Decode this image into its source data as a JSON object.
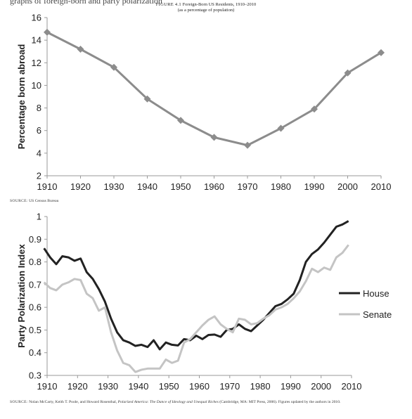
{
  "page": {
    "top_text": "graphs of foreign-born and party polarization",
    "figure_label": "FIGURE 4.1",
    "figure_title": "Foreign-Born US Residents, 1910–2010",
    "figure_subtitle": "(as a percentage of population)"
  },
  "source1": {
    "label": "SOURCE:",
    "text": "US Census Bureau"
  },
  "source2": {
    "label": "SOURCE:",
    "text_a": "Nolan McCarty, Keith T. Poole, and Howard Rosenthal,",
    "title": "Polarized America: The Dance of Ideology and Unequal Riches",
    "text_b": "(Cambridge, MA: MIT Press, 2006). Figures updated by the authors in 2010."
  },
  "chart_data": [
    {
      "type": "line",
      "title": "Foreign-Born US Residents, 1910–2010",
      "ylabel": "Percentage born abroad",
      "xlabel": "",
      "x": [
        1910,
        1920,
        1930,
        1940,
        1950,
        1960,
        1970,
        1980,
        1990,
        2000,
        2010
      ],
      "series": [
        {
          "name": "",
          "values": [
            14.7,
            13.2,
            11.6,
            8.8,
            6.9,
            5.4,
            4.7,
            6.2,
            7.9,
            11.1,
            12.9
          ],
          "color": "#8c8c8c"
        }
      ],
      "xlim": [
        1910,
        2010
      ],
      "ylim": [
        2,
        16
      ],
      "xticks": [
        "1910",
        "1920",
        "1930",
        "1940",
        "1950",
        "1960",
        "1970",
        "1980",
        "1990",
        "2000",
        "2010"
      ],
      "yticks": [
        "2",
        "4",
        "6",
        "8",
        "10",
        "12",
        "14",
        "16"
      ],
      "grid": false,
      "markers": "diamond"
    },
    {
      "type": "line",
      "ylabel": "Party Polarization Index",
      "xlabel": "",
      "x": [
        1909,
        1911,
        1913,
        1915,
        1917,
        1919,
        1921,
        1923,
        1925,
        1927,
        1929,
        1931,
        1933,
        1935,
        1937,
        1939,
        1941,
        1943,
        1945,
        1947,
        1949,
        1951,
        1953,
        1955,
        1957,
        1959,
        1961,
        1963,
        1965,
        1967,
        1969,
        1971,
        1973,
        1975,
        1977,
        1979,
        1981,
        1983,
        1985,
        1987,
        1989,
        1991,
        1993,
        1995,
        1997,
        1999,
        2001,
        2003,
        2005,
        2007,
        2009
      ],
      "series": [
        {
          "name": "House",
          "color": "#222222",
          "values": [
            0.86,
            0.82,
            0.79,
            0.825,
            0.82,
            0.805,
            0.815,
            0.755,
            0.725,
            0.68,
            0.625,
            0.55,
            0.49,
            0.455,
            0.445,
            0.43,
            0.435,
            0.425,
            0.455,
            0.415,
            0.445,
            0.435,
            0.432,
            0.46,
            0.455,
            0.475,
            0.46,
            0.478,
            0.48,
            0.47,
            0.5,
            0.505,
            0.525,
            0.505,
            0.495,
            0.52,
            0.545,
            0.575,
            0.605,
            0.615,
            0.635,
            0.66,
            0.72,
            0.8,
            0.835,
            0.855,
            0.885,
            0.92,
            0.955,
            0.965,
            0.98
          ]
        },
        {
          "name": "Senate",
          "color": "#c4c4c4",
          "values": [
            0.71,
            0.685,
            0.675,
            0.7,
            0.71,
            0.725,
            0.72,
            0.66,
            0.64,
            0.585,
            0.6,
            0.49,
            0.41,
            0.355,
            0.345,
            0.315,
            0.325,
            0.33,
            0.33,
            0.33,
            0.37,
            0.355,
            0.365,
            0.445,
            0.46,
            0.49,
            0.52,
            0.545,
            0.56,
            0.525,
            0.505,
            0.49,
            0.55,
            0.545,
            0.525,
            0.53,
            0.55,
            0.565,
            0.59,
            0.6,
            0.615,
            0.64,
            0.67,
            0.715,
            0.77,
            0.755,
            0.775,
            0.765,
            0.82,
            0.84,
            0.875
          ]
        }
      ],
      "xlim": [
        1910,
        2010
      ],
      "ylim": [
        0.3,
        1
      ],
      "xticks": [
        "1910",
        "1920",
        "1930",
        "1940",
        "1950",
        "1960",
        "1970",
        "1980",
        "1990",
        "2000",
        "2010"
      ],
      "yticks": [
        "0.3",
        "0.4",
        "0.5",
        "0.6",
        "0.7",
        "0.8",
        "0.9",
        "1"
      ],
      "grid": false,
      "legend": "right"
    }
  ]
}
